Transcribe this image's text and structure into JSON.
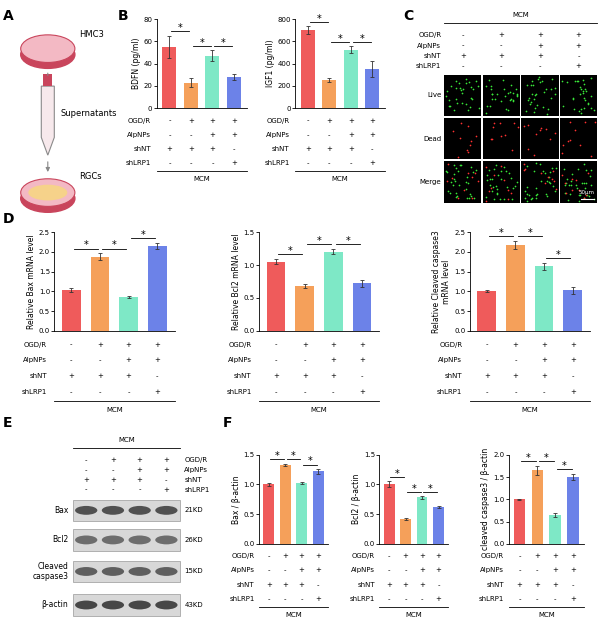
{
  "panel_labels": [
    "A",
    "B",
    "C",
    "D",
    "E",
    "F"
  ],
  "schematic": {
    "steps": [
      "HMC3",
      "Supernatants",
      "RGCs"
    ]
  },
  "conditions": {
    "group": "MCM",
    "rows": [
      {
        "name": "OGD/R",
        "signs": [
          "-",
          "+",
          "+",
          "+"
        ]
      },
      {
        "name": "AlpNPs",
        "signs": [
          "-",
          "-",
          "+",
          "+"
        ]
      },
      {
        "name": "shNT",
        "signs": [
          "+",
          "+",
          "+",
          "-"
        ]
      },
      {
        "name": "shLRP1",
        "signs": [
          "-",
          "-",
          "-",
          "+"
        ]
      }
    ]
  },
  "image_panel": {
    "rows": [
      "Live",
      "Dead",
      "Merge"
    ],
    "scale_bar": "50μm"
  },
  "western_blot": {
    "proteins": [
      {
        "name": "Bax",
        "size": "21KD"
      },
      {
        "name": "Bcl2",
        "size": "26KD"
      },
      {
        "name": "Cleaved\ncaspase3",
        "size": "15KD"
      },
      {
        "name": "β-actin",
        "size": "43KD"
      }
    ]
  },
  "chart_data": [
    {
      "type": "bar",
      "ylabel": "BDFN (pg/ml)",
      "categories": [
        null,
        null,
        null,
        null
      ],
      "values": [
        55,
        23,
        47,
        28
      ],
      "errors": [
        10,
        4,
        5,
        3
      ],
      "colors": [
        "#EF5B5B",
        "#F5A05A",
        "#7EE8C6",
        "#6C82E8"
      ],
      "ylim": [
        0,
        80
      ],
      "yticks": [
        0,
        20,
        40,
        60,
        80
      ],
      "tick_labels": "y",
      "significance": [
        [
          0,
          1
        ],
        [
          1,
          2
        ],
        [
          2,
          3
        ]
      ],
      "significance_label": "*"
    },
    {
      "type": "bar",
      "ylabel": "IGF1 (pg/ml)",
      "categories": [
        null,
        null,
        null,
        null
      ],
      "values": [
        700,
        255,
        525,
        350
      ],
      "errors": [
        35,
        20,
        30,
        70
      ],
      "colors": [
        "#EF5B5B",
        "#F5A05A",
        "#7EE8C6",
        "#6C82E8"
      ],
      "ylim": [
        0,
        800
      ],
      "yticks": [
        0,
        200,
        400,
        600,
        800
      ],
      "tick_labels": "y",
      "significance": [
        [
          0,
          1
        ],
        [
          1,
          2
        ],
        [
          2,
          3
        ]
      ],
      "significance_label": "*"
    },
    {
      "type": "bar",
      "ylabel": "Relative Bax mRNA level",
      "categories": [
        null,
        null,
        null,
        null
      ],
      "values": [
        1.03,
        1.88,
        0.85,
        2.15
      ],
      "errors": [
        0.05,
        0.08,
        0.02,
        0.07
      ],
      "colors": [
        "#EF5B5B",
        "#F5A05A",
        "#7EE8C6",
        "#6C82E8"
      ],
      "ylim": [
        0,
        2.5
      ],
      "yticks": [
        {
          "value": 0,
          "label": "0.0"
        },
        0.5,
        {
          "value": 1,
          "label": "1.0"
        },
        1.5,
        {
          "value": 2,
          "label": "2.0"
        },
        2.5
      ],
      "tick_labels": "y",
      "significance": [
        [
          0,
          1
        ],
        [
          1,
          2
        ],
        [
          2,
          3
        ]
      ],
      "significance_label": "*"
    },
    {
      "type": "bar",
      "ylabel": "Relative Bcl2 mRNA level",
      "categories": [
        null,
        null,
        null,
        null
      ],
      "values": [
        1.05,
        0.68,
        1.2,
        0.72
      ],
      "errors": [
        0.04,
        0.03,
        0.04,
        0.05
      ],
      "colors": [
        "#EF5B5B",
        "#F5A05A",
        "#7EE8C6",
        "#6C82E8"
      ],
      "ylim": [
        0,
        1.5
      ],
      "yticks": [
        {
          "value": 0,
          "label": "0.0"
        },
        0.5,
        {
          "value": 1,
          "label": "1.0"
        },
        1.5
      ],
      "tick_labels": "y",
      "significance": [
        [
          0,
          1
        ],
        [
          1,
          2
        ],
        [
          2,
          3
        ]
      ],
      "significance_label": "*"
    },
    {
      "type": "bar",
      "ylabel": "Relative Cleaved caspase3\nmRNA level",
      "categories": [
        null,
        null,
        null,
        null
      ],
      "values": [
        1.0,
        2.18,
        1.63,
        1.02
      ],
      "errors": [
        0.02,
        0.1,
        0.08,
        0.1
      ],
      "colors": [
        "#EF5B5B",
        "#F5A05A",
        "#7EE8C6",
        "#6C82E8"
      ],
      "ylim": [
        0,
        2.5
      ],
      "yticks": [
        {
          "value": 0,
          "label": "0.0"
        },
        0.5,
        {
          "value": 1,
          "label": "1.0"
        },
        1.5,
        {
          "value": 2,
          "label": "2.0"
        },
        2.5
      ],
      "tick_labels": "y",
      "significance": [
        [
          0,
          1
        ],
        [
          1,
          2
        ],
        [
          2,
          3
        ]
      ],
      "significance_label": "*"
    },
    {
      "type": "bar",
      "ylabel": "Bax / β-actin",
      "categories": [
        null,
        null,
        null,
        null
      ],
      "values": [
        1.0,
        1.33,
        1.02,
        1.22
      ],
      "errors": [
        0.02,
        0.02,
        0.02,
        0.04
      ],
      "colors": [
        "#EF5B5B",
        "#F5A05A",
        "#7EE8C6",
        "#6C82E8"
      ],
      "ylim": [
        0,
        1.5
      ],
      "yticks": [
        {
          "value": 0,
          "label": "0.0"
        },
        0.5,
        {
          "value": 1,
          "label": "1.0"
        },
        1.5
      ],
      "tick_labels": "y",
      "significance": [
        [
          0,
          1
        ],
        [
          1,
          2
        ],
        [
          2,
          3
        ]
      ],
      "significance_label": "*"
    },
    {
      "type": "bar",
      "ylabel": "Bcl2 / β-actin",
      "categories": [
        null,
        null,
        null,
        null
      ],
      "values": [
        1.0,
        0.42,
        0.78,
        0.62
      ],
      "errors": [
        0.05,
        0.02,
        0.02,
        0.02
      ],
      "colors": [
        "#EF5B5B",
        "#F5A05A",
        "#7EE8C6",
        "#6C82E8"
      ],
      "ylim": [
        0,
        1.5
      ],
      "yticks": [
        {
          "value": 0,
          "label": "0.0"
        },
        0.5,
        {
          "value": 1,
          "label": "1.0"
        },
        1.5
      ],
      "tick_labels": "y",
      "significance": [
        [
          0,
          1
        ],
        [
          1,
          2
        ],
        [
          2,
          3
        ]
      ],
      "significance_label": "*"
    },
    {
      "type": "bar",
      "ylabel": "cleaved caspase3 / β-actin",
      "categories": [
        null,
        null,
        null,
        null
      ],
      "values": [
        1.0,
        1.65,
        0.65,
        1.5
      ],
      "errors": [
        0.01,
        0.1,
        0.05,
        0.07
      ],
      "colors": [
        "#EF5B5B",
        "#F5A05A",
        "#7EE8C6",
        "#6C82E8"
      ],
      "ylim": [
        0,
        2.0
      ],
      "yticks": [
        {
          "value": 0,
          "label": "0.0"
        },
        0.5,
        {
          "value": 1,
          "label": "1.0"
        },
        1.5,
        {
          "value": 2,
          "label": "2.0"
        }
      ],
      "tick_labels": "y",
      "significance": [
        [
          0,
          1
        ],
        [
          1,
          2
        ],
        [
          2,
          3
        ]
      ],
      "significance_label": "*"
    }
  ]
}
